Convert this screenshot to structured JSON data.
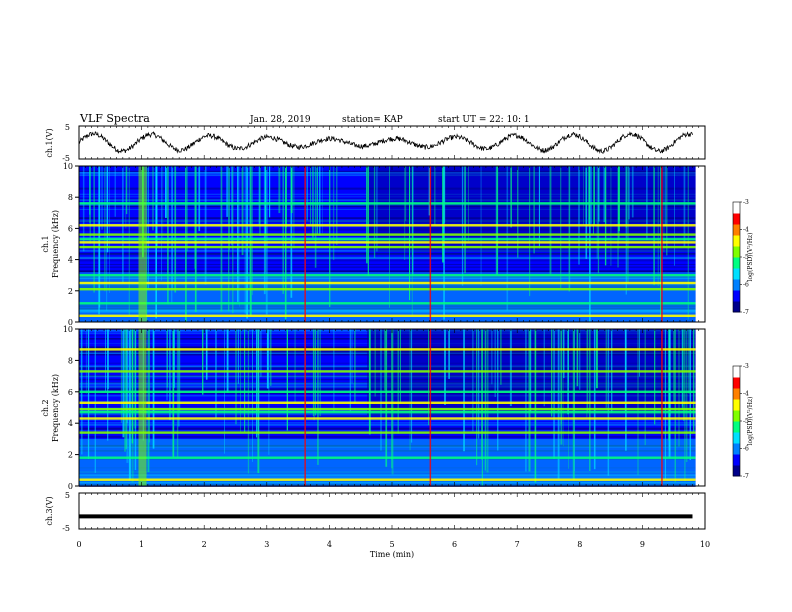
{
  "header": {
    "title": "VLF Spectra",
    "date": "Jan. 28, 2019",
    "station": "station= KAP",
    "start": "start  UT =   22: 10: 1"
  },
  "colors": {
    "colormap": [
      "#00008a",
      "#0000ff",
      "#0080ff",
      "#00e0ff",
      "#00ff80",
      "#80ff00",
      "#ffff00",
      "#ff8000",
      "#ff0000",
      "#ffffff"
    ],
    "waveform": "#000000",
    "ch3_line": "#000000"
  },
  "chart_data": [
    {
      "type": "line",
      "name": "ch1-waveform",
      "ylabel": "ch.1(V)",
      "ylim": [
        -5,
        5
      ],
      "yticks": [
        "5",
        "-5"
      ],
      "xlim": [
        0,
        10
      ]
    },
    {
      "type": "heatmap",
      "name": "ch1-spectrogram",
      "ylabel": "ch.1\nFrequency (kHz)",
      "ylabel_lines": [
        "ch.1",
        "Frequency  (kHz)"
      ],
      "ylim": [
        0,
        10
      ],
      "yticks": [
        "0",
        "2",
        "4",
        "6",
        "8",
        "10"
      ],
      "colorbar": {
        "label": "log(PSD)(V²/Hz)",
        "range": [
          -7,
          -3
        ],
        "ticks": [
          "-3",
          "-4",
          "-5",
          "-6",
          "-7"
        ]
      },
      "bands_khz": [
        0.4,
        1.2,
        2.1,
        2.5,
        3.0,
        4.8,
        5.1,
        5.3,
        5.6,
        6.2,
        7.6
      ],
      "transient_min": [
        0.95,
        3.6,
        5.6,
        9.3
      ]
    },
    {
      "type": "heatmap",
      "name": "ch2-spectrogram",
      "ylabel": "ch.2\nFrequency (kHz)",
      "ylabel_lines": [
        "ch.2",
        "Frequency  (kHz)"
      ],
      "ylim": [
        0,
        10
      ],
      "yticks": [
        "0",
        "2",
        "4",
        "6",
        "8",
        "10"
      ],
      "colorbar": {
        "label": "log(PSD)(V²/Hz)",
        "range": [
          -7,
          -3
        ],
        "ticks": [
          "-3",
          "-4",
          "-5",
          "-6",
          "-7"
        ]
      },
      "bands_khz": [
        0.4,
        1.8,
        3.4,
        4.3,
        4.7,
        4.9,
        5.3,
        6.0,
        7.3,
        8.7
      ],
      "transient_min": [
        0.95,
        3.6,
        5.6,
        9.3
      ]
    },
    {
      "type": "line",
      "name": "ch3-waveform",
      "ylabel": "ch.3(V)",
      "ylim": [
        -5,
        5
      ],
      "yticks": [
        "5",
        "-5"
      ],
      "x": [
        0,
        9.8
      ],
      "y": [
        -1.5,
        -1.5
      ],
      "xlim": [
        0,
        10
      ],
      "xlabel": "Time  (min)",
      "xticks": [
        "0",
        "1",
        "2",
        "3",
        "4",
        "5",
        "6",
        "7",
        "8",
        "9",
        "10"
      ]
    }
  ]
}
